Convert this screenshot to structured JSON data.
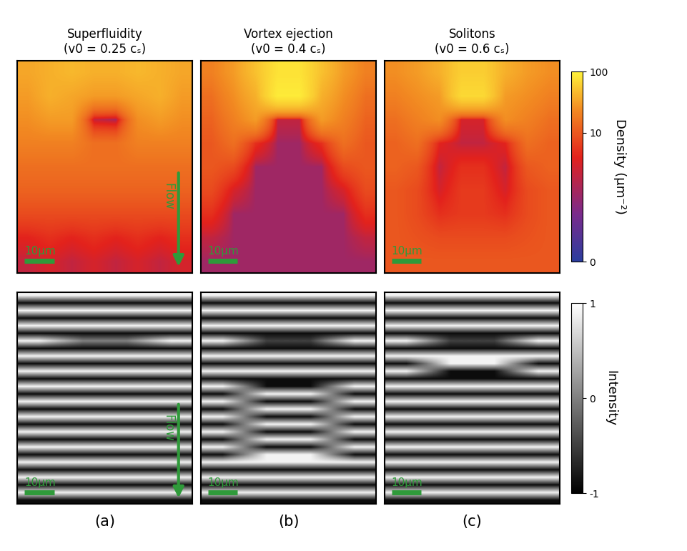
{
  "chart_data": [
    {
      "type": "heatmap",
      "title": "Superfluidity\n(v0 = 0.25 cₛ)",
      "tick_labels": false,
      "log": true,
      "zlim": [
        0,
        100
      ],
      "scale_bar_label": "10µm",
      "flow_label": "Flow",
      "cells": [
        [
          35,
          40,
          45,
          40,
          40,
          45,
          40,
          35
        ],
        [
          30,
          40,
          35,
          30,
          30,
          35,
          40,
          30
        ],
        [
          25,
          30,
          30,
          2,
          1,
          25,
          30,
          25
        ],
        [
          20,
          20,
          20,
          15,
          15,
          20,
          20,
          20
        ],
        [
          15,
          15,
          15,
          15,
          15,
          15,
          15,
          15
        ],
        [
          12,
          12,
          12,
          12,
          12,
          12,
          12,
          12
        ],
        [
          8,
          8,
          8,
          8,
          8,
          8,
          8,
          8
        ],
        [
          4,
          5,
          4,
          5,
          4,
          5,
          4,
          5
        ],
        [
          2,
          3,
          2,
          3,
          2,
          3,
          2,
          3
        ]
      ]
    },
    {
      "type": "heatmap",
      "title": "Vortex ejection\n(v0 = 0.4 cₛ)",
      "tick_labels": false,
      "log": true,
      "zlim": [
        0,
        100
      ],
      "scale_bar_label": "10µm",
      "cells": [
        [
          20,
          30,
          50,
          80,
          80,
          50,
          30,
          20
        ],
        [
          15,
          25,
          40,
          90,
          90,
          40,
          25,
          15
        ],
        [
          12,
          20,
          30,
          2,
          2,
          30,
          20,
          12
        ],
        [
          10,
          15,
          5,
          1,
          1,
          5,
          15,
          10
        ],
        [
          10,
          8,
          1,
          1,
          1,
          1,
          8,
          10
        ],
        [
          8,
          3,
          1,
          1,
          1,
          1,
          3,
          8
        ],
        [
          5,
          1,
          1,
          1,
          1,
          1,
          1,
          5
        ],
        [
          2,
          1,
          1,
          1,
          1,
          1,
          1,
          2
        ],
        [
          1,
          1,
          1,
          1,
          1,
          1,
          1,
          1
        ]
      ]
    },
    {
      "type": "heatmap",
      "title": "Solitons\n(v0 = 0.6 cₛ)",
      "tick_labels": false,
      "log": true,
      "zlim": [
        0,
        100
      ],
      "zticks": [
        0,
        10,
        100
      ],
      "zlabel": "Density (µm⁻²)",
      "scale_bar_label": "10µm",
      "cells": [
        [
          25,
          30,
          40,
          60,
          60,
          40,
          30,
          25
        ],
        [
          20,
          25,
          30,
          70,
          70,
          30,
          25,
          20
        ],
        [
          15,
          20,
          25,
          3,
          3,
          25,
          20,
          15
        ],
        [
          12,
          15,
          4,
          2,
          2,
          4,
          15,
          12
        ],
        [
          12,
          10,
          2,
          5,
          5,
          2,
          10,
          12
        ],
        [
          10,
          8,
          3,
          6,
          6,
          3,
          8,
          10
        ],
        [
          10,
          8,
          5,
          6,
          6,
          5,
          8,
          10
        ],
        [
          10,
          9,
          8,
          8,
          8,
          8,
          9,
          10
        ],
        [
          10,
          10,
          10,
          10,
          10,
          10,
          10,
          10
        ]
      ]
    },
    {
      "type": "heatmap",
      "panel_label": "(a)",
      "tick_labels": false,
      "zlim": [
        -1,
        1
      ],
      "scale_bar_label": "10µm",
      "flow_label": "Flow",
      "cells": [
        [
          0.9,
          0.9,
          0.9,
          0.9
        ],
        [
          -0.9,
          -0.9,
          -0.9,
          -0.9
        ],
        [
          0.9,
          0.9,
          0.9,
          0.9
        ],
        [
          -0.9,
          -0.9,
          -0.9,
          -0.9
        ],
        [
          0.9,
          0.9,
          0.9,
          0.9
        ],
        [
          -0.9,
          -0.9,
          -0.9,
          -0.9
        ],
        [
          0.9,
          0,
          0,
          0.9
        ],
        [
          -0.9,
          -0.9,
          -0.9,
          -0.9
        ],
        [
          0.9,
          0.9,
          0.9,
          0.9
        ],
        [
          -0.9,
          -0.9,
          -0.9,
          -0.9
        ],
        [
          0.9,
          0.9,
          0.9,
          0.9
        ],
        [
          -0.9,
          -0.9,
          -0.9,
          -0.9
        ],
        [
          0.9,
          0.9,
          0.9,
          0.9
        ],
        [
          -0.9,
          -0.9,
          -0.9,
          -0.9
        ],
        [
          0.9,
          0.9,
          0.9,
          0.9
        ],
        [
          -0.9,
          -0.9,
          -0.9,
          -0.9
        ],
        [
          0.9,
          0.9,
          0.9,
          0.9
        ],
        [
          -0.9,
          -0.9,
          -0.9,
          -0.9
        ],
        [
          0.9,
          0.9,
          0.9,
          0.9
        ],
        [
          -0.9,
          -0.9,
          -0.9,
          -0.9
        ],
        [
          0.9,
          0.9,
          0.9,
          0.9
        ],
        [
          -0.9,
          -0.9,
          -0.9,
          -0.9
        ],
        [
          0.9,
          0.9,
          0.9,
          0.9
        ],
        [
          -0.9,
          -0.9,
          -0.9,
          -0.9
        ],
        [
          0.9,
          0.9,
          0.9,
          0.9
        ],
        [
          -0.9,
          -0.9,
          -0.9,
          -0.9
        ],
        [
          0.9,
          0.9,
          0.9,
          0.9
        ],
        [
          -0.9,
          -0.9,
          -0.9,
          -0.9
        ]
      ]
    },
    {
      "type": "heatmap",
      "panel_label": "(b)",
      "tick_labels": false,
      "zlim": [
        -1,
        1
      ],
      "scale_bar_label": "10µm",
      "cells": [
        [
          0.9,
          0.9,
          0.9,
          0.9
        ],
        [
          -0.9,
          -0.9,
          -0.9,
          -0.9
        ],
        [
          0.9,
          0.9,
          0.9,
          0.9
        ],
        [
          -0.9,
          -0.9,
          -0.9,
          -0.9
        ],
        [
          0.9,
          0.9,
          0.9,
          0.9
        ],
        [
          -0.9,
          -0.9,
          -0.9,
          -0.9
        ],
        [
          0.9,
          -0.5,
          -0.5,
          0.9
        ],
        [
          -0.9,
          -0.9,
          -0.9,
          -0.9
        ],
        [
          0.9,
          0.9,
          0.9,
          0.9
        ],
        [
          -0.9,
          -0.9,
          -0.9,
          -0.9
        ],
        [
          0.9,
          0.9,
          0.9,
          0.9
        ],
        [
          -0.9,
          -0.9,
          -0.9,
          -0.9
        ],
        [
          0.9,
          -0.9,
          -0.9,
          0.9
        ],
        [
          -0.9,
          0.9,
          0.9,
          -0.9
        ],
        [
          0.9,
          -0.9,
          -0.9,
          0.9
        ],
        [
          -0.9,
          0.9,
          0.9,
          -0.9
        ],
        [
          0.9,
          -0.9,
          -0.9,
          0.9
        ],
        [
          -0.9,
          0.9,
          0.9,
          -0.9
        ],
        [
          0.9,
          -0.9,
          -0.9,
          0.9
        ],
        [
          -0.9,
          0.9,
          0.9,
          -0.9
        ],
        [
          0.9,
          -0.9,
          -0.9,
          0.9
        ],
        [
          -0.9,
          0.9,
          0.9,
          -0.9
        ],
        [
          0.9,
          0.9,
          0.9,
          0.9
        ],
        [
          -0.9,
          -0.9,
          -0.9,
          -0.9
        ],
        [
          0.9,
          0.9,
          0.9,
          0.9
        ],
        [
          -0.9,
          -0.9,
          -0.9,
          -0.9
        ],
        [
          0.9,
          0.9,
          0.9,
          0.9
        ],
        [
          -0.9,
          -0.9,
          -0.9,
          -0.9
        ]
      ]
    },
    {
      "type": "heatmap",
      "panel_label": "(c)",
      "tick_labels": false,
      "zlim": [
        -1,
        1
      ],
      "zticks": [
        -1,
        0,
        1
      ],
      "zlabel": "Intensity",
      "scale_bar_label": "10µm",
      "cells": [
        [
          0.9,
          0.9,
          0.9,
          0.9
        ],
        [
          -0.9,
          -0.9,
          -0.9,
          -0.9
        ],
        [
          0.9,
          0.9,
          0.9,
          0.9
        ],
        [
          -0.9,
          -0.9,
          -0.9,
          -0.9
        ],
        [
          0.9,
          0.9,
          0.9,
          0.9
        ],
        [
          -0.9,
          -0.9,
          -0.9,
          -0.9
        ],
        [
          0.9,
          -0.5,
          -0.5,
          0.9
        ],
        [
          -0.9,
          -0.9,
          -0.9,
          -0.9
        ],
        [
          0.9,
          0.9,
          0.9,
          0.9
        ],
        [
          -0.9,
          0.9,
          0.9,
          -0.9
        ],
        [
          0.9,
          -0.9,
          -0.9,
          0.9
        ],
        [
          -0.9,
          -0.9,
          -0.9,
          -0.9
        ],
        [
          0.9,
          0.9,
          0.9,
          0.9
        ],
        [
          -0.9,
          -0.9,
          -0.9,
          -0.9
        ],
        [
          0.9,
          0.9,
          0.9,
          0.9
        ],
        [
          -0.9,
          -0.9,
          -0.9,
          -0.9
        ],
        [
          0.9,
          0.9,
          0.9,
          0.9
        ],
        [
          -0.9,
          -0.9,
          -0.9,
          -0.9
        ],
        [
          0.9,
          0.9,
          0.9,
          0.9
        ],
        [
          -0.9,
          -0.9,
          -0.9,
          -0.9
        ],
        [
          0.9,
          0.9,
          0.9,
          0.9
        ],
        [
          -0.9,
          -0.9,
          -0.9,
          -0.9
        ],
        [
          0.9,
          0.9,
          0.9,
          0.9
        ],
        [
          -0.9,
          -0.9,
          -0.9,
          -0.9
        ],
        [
          0.9,
          0.9,
          0.9,
          0.9
        ],
        [
          -0.9,
          -0.9,
          -0.9,
          -0.9
        ],
        [
          0.9,
          0.9,
          0.9,
          0.9
        ],
        [
          -0.9,
          -0.9,
          -0.9,
          -0.9
        ]
      ]
    }
  ]
}
